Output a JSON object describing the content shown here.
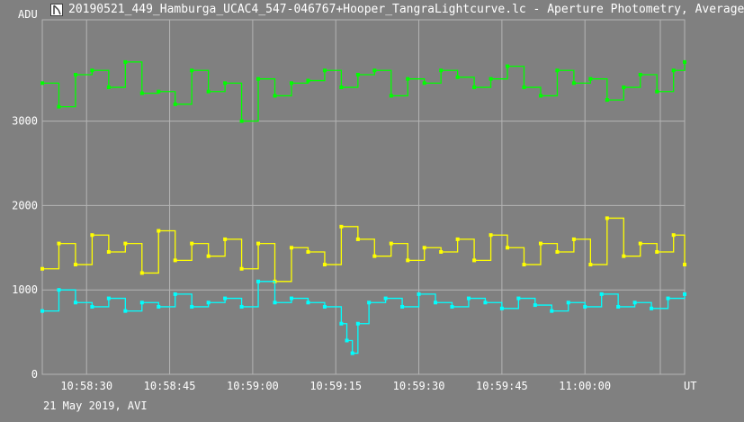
{
  "window": {
    "title": "20190521_449_Hamburga_UCAC4_547-046767+Hooper_TangraLightcurve.lc - Aperture Photometry, Average"
  },
  "footer": {
    "caption": "21 May 2019, AVI"
  },
  "chart_data": {
    "type": "line",
    "ylabel": "ADU",
    "xlabel": "UT",
    "ylim": [
      0,
      4200
    ],
    "yticks": [
      "0",
      "1000",
      "2000",
      "3000"
    ],
    "xticks": [
      "10:58:30",
      "10:58:45",
      "10:59:00",
      "10:59:15",
      "10:59:30",
      "10:59:45",
      "11:00:00"
    ],
    "xlim": [
      "10:58:22",
      "11:00:18"
    ],
    "grid": true,
    "series": [
      {
        "color": "#00ff00",
        "x": [
          "10:58:22",
          "10:58:25",
          "10:58:28",
          "10:58:31",
          "10:58:34",
          "10:58:37",
          "10:58:40",
          "10:58:43",
          "10:58:46",
          "10:58:49",
          "10:58:52",
          "10:58:55",
          "10:58:58",
          "10:59:01",
          "10:59:04",
          "10:59:07",
          "10:59:10",
          "10:59:13",
          "10:59:16",
          "10:59:19",
          "10:59:22",
          "10:59:25",
          "10:59:28",
          "10:59:31",
          "10:59:34",
          "10:59:37",
          "10:59:40",
          "10:59:43",
          "10:59:46",
          "10:59:49",
          "10:59:52",
          "10:59:55",
          "10:59:58",
          "11:00:01",
          "11:00:04",
          "11:00:07",
          "11:00:10",
          "11:00:13",
          "11:00:16",
          "11:00:18"
        ],
        "values": [
          3450,
          3170,
          3550,
          3600,
          3400,
          3700,
          3330,
          3350,
          3200,
          3600,
          3350,
          3450,
          3000,
          3500,
          3300,
          3450,
          3480,
          3600,
          3400,
          3550,
          3600,
          3300,
          3500,
          3450,
          3600,
          3520,
          3400,
          3500,
          3650,
          3400,
          3300,
          3600,
          3450,
          3500,
          3250,
          3400,
          3550,
          3350,
          3600,
          3700
        ]
      },
      {
        "color": "#ffff00",
        "x": [
          "10:58:22",
          "10:58:25",
          "10:58:28",
          "10:58:31",
          "10:58:34",
          "10:58:37",
          "10:58:40",
          "10:58:43",
          "10:58:46",
          "10:58:49",
          "10:58:52",
          "10:58:55",
          "10:58:58",
          "10:59:01",
          "10:59:04",
          "10:59:07",
          "10:59:10",
          "10:59:13",
          "10:59:16",
          "10:59:19",
          "10:59:22",
          "10:59:25",
          "10:59:28",
          "10:59:31",
          "10:59:34",
          "10:59:37",
          "10:59:40",
          "10:59:43",
          "10:59:46",
          "10:59:49",
          "10:59:52",
          "10:59:55",
          "10:59:58",
          "11:00:01",
          "11:00:04",
          "11:00:07",
          "11:00:10",
          "11:00:13",
          "11:00:16",
          "11:00:18"
        ],
        "values": [
          1250,
          1550,
          1300,
          1650,
          1450,
          1550,
          1200,
          1700,
          1350,
          1550,
          1400,
          1600,
          1250,
          1550,
          1100,
          1500,
          1450,
          1300,
          1750,
          1600,
          1400,
          1550,
          1350,
          1500,
          1450,
          1600,
          1350,
          1650,
          1500,
          1300,
          1550,
          1450,
          1600,
          1300,
          1850,
          1400,
          1550,
          1450,
          1650,
          1300
        ]
      },
      {
        "color": "#00ffff",
        "x": [
          "10:58:22",
          "10:58:25",
          "10:58:28",
          "10:58:31",
          "10:58:34",
          "10:58:37",
          "10:58:40",
          "10:58:43",
          "10:58:46",
          "10:58:49",
          "10:58:52",
          "10:58:55",
          "10:58:58",
          "10:59:01",
          "10:59:04",
          "10:59:07",
          "10:59:10",
          "10:59:13",
          "10:59:16",
          "10:59:17",
          "10:59:18",
          "10:59:19",
          "10:59:21",
          "10:59:24",
          "10:59:27",
          "10:59:30",
          "10:59:33",
          "10:59:36",
          "10:59:39",
          "10:59:42",
          "10:59:45",
          "10:59:48",
          "10:59:51",
          "10:59:54",
          "10:59:57",
          "11:00:00",
          "11:00:03",
          "11:00:06",
          "11:00:09",
          "11:00:12",
          "11:00:15",
          "11:00:18"
        ],
        "values": [
          750,
          1000,
          850,
          800,
          900,
          750,
          850,
          800,
          950,
          800,
          850,
          900,
          800,
          1100,
          850,
          900,
          850,
          800,
          600,
          400,
          250,
          600,
          850,
          900,
          800,
          950,
          850,
          800,
          900,
          850,
          780,
          900,
          820,
          750,
          850,
          800,
          950,
          800,
          850,
          780,
          900,
          950
        ]
      }
    ]
  }
}
